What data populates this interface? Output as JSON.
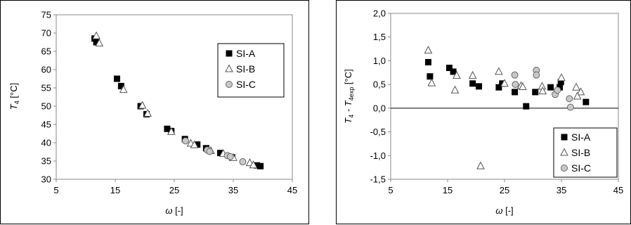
{
  "chart_data": [
    {
      "type": "scatter",
      "ylabel": "T4 [°C]",
      "ylabel_main": "T",
      "ylabel_sub": "4",
      "ylabel_unit": " [°C]",
      "xlabel": "ω [-]",
      "xlabel_main": "ω",
      "xlabel_unit": " [-]",
      "xlim": [
        5,
        45
      ],
      "ylim": [
        30,
        75
      ],
      "xticks": [
        "5",
        "15",
        "25",
        "35",
        "45"
      ],
      "yticks": [
        "30",
        "35",
        "40",
        "45",
        "50",
        "55",
        "60",
        "65",
        "70",
        "75"
      ],
      "legend_position": "top-right",
      "series": [
        {
          "name": "SI-A",
          "marker": "square",
          "color": "#000000",
          "points": [
            [
              11.5,
              68.5
            ],
            [
              11.8,
              67.5
            ],
            [
              15.3,
              57.5
            ],
            [
              16.0,
              55.5
            ],
            [
              19.3,
              50.0
            ],
            [
              20.3,
              47.8
            ],
            [
              23.8,
              43.8
            ],
            [
              24.5,
              43.2
            ],
            [
              26.8,
              41.0
            ],
            [
              28.9,
              39.5
            ],
            [
              30.4,
              38.5
            ],
            [
              32.8,
              37.2
            ],
            [
              34.8,
              36.0
            ],
            [
              39.0,
              33.8
            ],
            [
              39.6,
              33.6
            ]
          ]
        },
        {
          "name": "SI-B",
          "marker": "triangle",
          "color": "#000000",
          "points": [
            [
              11.8,
              69.2
            ],
            [
              12.3,
              67.2
            ],
            [
              16.4,
              54.5
            ],
            [
              19.6,
              50.2
            ],
            [
              20.5,
              48.0
            ],
            [
              24.5,
              43.0
            ],
            [
              27.8,
              39.8
            ],
            [
              28.4,
              39.4
            ],
            [
              31.2,
              37.8
            ],
            [
              33.3,
              37.0
            ],
            [
              35.0,
              35.9
            ],
            [
              37.8,
              34.5
            ],
            [
              38.4,
              33.9
            ]
          ]
        },
        {
          "name": "SI-C",
          "marker": "circle",
          "color": "#c8c8c8",
          "points": [
            [
              26.9,
              40.5
            ],
            [
              30.6,
              38.0
            ],
            [
              31.0,
              37.6
            ],
            [
              34.0,
              36.5
            ],
            [
              34.5,
              36.2
            ],
            [
              36.6,
              34.8
            ]
          ]
        }
      ]
    },
    {
      "type": "scatter",
      "ylabel": "T4 - T4exp [°C]",
      "ylabel_main1": "T",
      "ylabel_sub1": "4",
      "ylabel_mid": " - T",
      "ylabel_sub2": "4exp",
      "ylabel_unit": " [°C]",
      "xlabel": "ω [-]",
      "xlabel_main": "ω",
      "xlabel_unit": " [-]",
      "xlim": [
        5,
        45
      ],
      "ylim": [
        -1.5,
        2.0
      ],
      "xticks": [
        "5",
        "15",
        "25",
        "35",
        "45"
      ],
      "yticks": [
        "-1,5",
        "-1,0",
        "-0,5",
        "0,0",
        "0,5",
        "1,0",
        "1,5",
        "2,0"
      ],
      "legend_position": "bottom-right",
      "series": [
        {
          "name": "SI-A",
          "marker": "square",
          "color": "#000000",
          "points": [
            [
              11.6,
              0.97
            ],
            [
              11.9,
              0.67
            ],
            [
              15.3,
              0.85
            ],
            [
              16.0,
              0.77
            ],
            [
              19.4,
              0.52
            ],
            [
              20.5,
              0.46
            ],
            [
              24.0,
              0.44
            ],
            [
              24.6,
              0.52
            ],
            [
              26.8,
              0.34
            ],
            [
              28.8,
              0.04
            ],
            [
              30.4,
              0.34
            ],
            [
              33.1,
              0.44
            ],
            [
              34.7,
              0.44
            ],
            [
              34.9,
              0.55
            ],
            [
              39.3,
              0.13
            ]
          ]
        },
        {
          "name": "SI-B",
          "marker": "triangle",
          "color": "#000000",
          "points": [
            [
              11.6,
              1.22
            ],
            [
              12.2,
              0.53
            ],
            [
              16.3,
              0.38
            ],
            [
              16.6,
              0.69
            ],
            [
              19.4,
              0.69
            ],
            [
              20.8,
              -1.22
            ],
            [
              24.0,
              0.77
            ],
            [
              25.0,
              0.52
            ],
            [
              27.9,
              0.47
            ],
            [
              28.2,
              0.45
            ],
            [
              31.6,
              0.46
            ],
            [
              31.7,
              0.36
            ],
            [
              35.0,
              0.64
            ],
            [
              37.6,
              0.44
            ],
            [
              38.4,
              0.34
            ],
            [
              37.8,
              0.25
            ]
          ]
        },
        {
          "name": "SI-C",
          "marker": "circle",
          "color": "#c8c8c8",
          "points": [
            [
              26.8,
              0.7
            ],
            [
              26.9,
              0.5
            ],
            [
              30.6,
              0.8
            ],
            [
              30.6,
              0.7
            ],
            [
              33.9,
              0.29
            ],
            [
              34.3,
              0.38
            ],
            [
              36.4,
              0.2
            ],
            [
              36.6,
              0.02
            ]
          ]
        }
      ]
    }
  ]
}
